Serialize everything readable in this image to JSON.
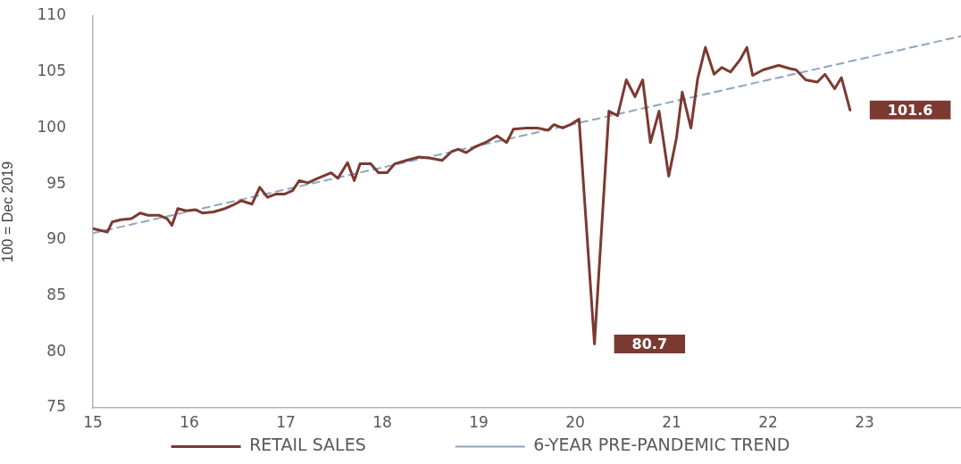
{
  "chart_data": {
    "type": "line",
    "ylabel": "100 = Dec 2019",
    "xlim": [
      15,
      24
    ],
    "xticks": [
      15,
      16,
      17,
      18,
      19,
      20,
      21,
      22,
      23
    ],
    "ylim": [
      75,
      110
    ],
    "yticks": [
      75,
      80,
      85,
      90,
      95,
      100,
      105,
      110
    ],
    "grid": false,
    "legend": "bottom",
    "marker": "none",
    "series": [
      {
        "name": "RETAIL SALES",
        "color": "#7b3a31",
        "line_style": "solid",
        "x": [
          15.0,
          15.15,
          15.2,
          15.29,
          15.4,
          15.49,
          15.57,
          15.69,
          15.77,
          15.82,
          15.88,
          15.97,
          16.06,
          16.14,
          16.25,
          16.37,
          16.45,
          16.54,
          16.65,
          16.73,
          16.81,
          16.9,
          16.99,
          17.07,
          17.14,
          17.23,
          17.33,
          17.47,
          17.54,
          17.64,
          17.71,
          17.77,
          17.88,
          17.96,
          18.05,
          18.13,
          18.25,
          18.38,
          18.5,
          18.62,
          18.72,
          18.79,
          18.87,
          18.96,
          19.07,
          19.19,
          19.29,
          19.36,
          19.49,
          19.61,
          19.72,
          19.78,
          19.87,
          19.95,
          20.04,
          20.2,
          20.35,
          20.44,
          20.53,
          20.62,
          20.7,
          20.78,
          20.87,
          20.97,
          21.05,
          21.11,
          21.2,
          21.27,
          21.35,
          21.44,
          21.52,
          21.61,
          21.71,
          21.78,
          21.84,
          21.95,
          22.11,
          22.23,
          22.29,
          22.39,
          22.51,
          22.59,
          22.69,
          22.76,
          22.85
        ],
        "values": [
          91.0,
          90.7,
          91.6,
          91.8,
          91.9,
          92.4,
          92.2,
          92.2,
          91.9,
          91.3,
          92.8,
          92.6,
          92.7,
          92.4,
          92.5,
          92.8,
          93.1,
          93.5,
          93.2,
          94.7,
          93.8,
          94.1,
          94.1,
          94.4,
          95.3,
          95.1,
          95.5,
          96.0,
          95.5,
          96.9,
          95.3,
          96.8,
          96.8,
          96.0,
          96.0,
          96.8,
          97.1,
          97.4,
          97.3,
          97.1,
          97.9,
          98.1,
          97.8,
          98.3,
          98.7,
          99.3,
          98.7,
          99.9,
          100.0,
          100.0,
          99.8,
          100.3,
          100.0,
          100.3,
          100.8,
          80.7,
          101.5,
          101.1,
          104.3,
          102.8,
          104.3,
          98.7,
          101.5,
          95.7,
          99.1,
          103.2,
          100.0,
          104.4,
          107.2,
          104.8,
          105.4,
          105.0,
          106.1,
          107.2,
          104.7,
          105.2,
          105.6,
          105.3,
          105.2,
          104.3,
          104.1,
          104.8,
          103.5,
          104.5,
          101.6
        ]
      },
      {
        "name": "6-YEAR PRE-PANDEMIC TREND",
        "color": "#8ea6bf",
        "line_style": "dashed",
        "x": [
          15,
          24
        ],
        "values": [
          90.6,
          108.2
        ]
      }
    ],
    "annotations": [
      {
        "text": "80.7",
        "x": 20.2,
        "y": 80.7
      },
      {
        "text": "101.6",
        "x": 22.85,
        "y": 101.6
      }
    ]
  }
}
